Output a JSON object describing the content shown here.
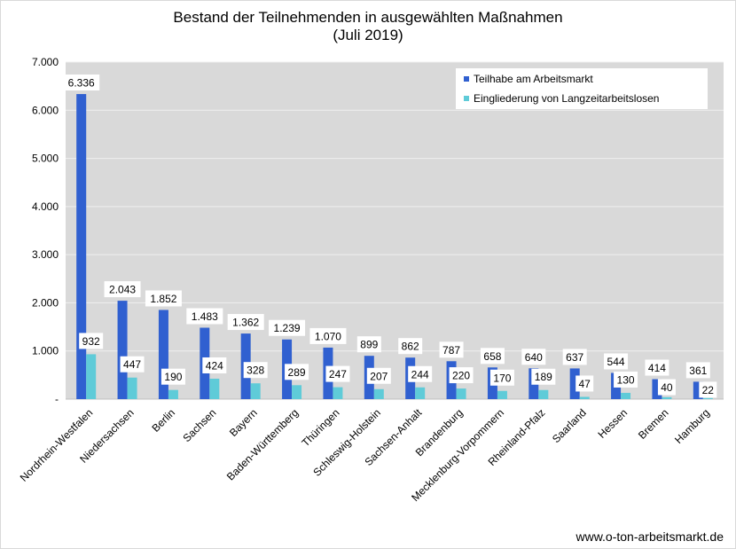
{
  "chart_data": {
    "type": "bar",
    "title": "Bestand der Teilnehmenden in ausgewählten Maßnahmen",
    "subtitle": "(Juli 2019)",
    "categories": [
      "Nordrhein-Westfalen",
      "Niedersachsen",
      "Berlin",
      "Sachsen",
      "Bayern",
      "Baden-Württemberg",
      "Thüringen",
      "Schleswig-Holstein",
      "Sachsen-Anhalt",
      "Brandenburg",
      "Mecklenburg-Vorpommern",
      "Rheinland-Pfalz",
      "Saarland",
      "Hessen",
      "Bremen",
      "Hamburg"
    ],
    "series": [
      {
        "name": "Teilhabe am Arbeitsmarkt",
        "color": "#3060d0",
        "values": [
          6336,
          2043,
          1852,
          1483,
          1362,
          1239,
          1070,
          899,
          862,
          787,
          658,
          640,
          637,
          544,
          414,
          361
        ],
        "labels": [
          "6.336",
          "2.043",
          "1.852",
          "1.483",
          "1.362",
          "1.239",
          "1.070",
          "899",
          "862",
          "787",
          "658",
          "640",
          "637",
          "544",
          "414",
          "361"
        ]
      },
      {
        "name": "Eingliederung von Langzeitarbeitslosen",
        "color": "#5fcbd8",
        "values": [
          932,
          447,
          190,
          424,
          328,
          289,
          247,
          207,
          244,
          220,
          170,
          189,
          47,
          130,
          40,
          22
        ],
        "labels": [
          "932",
          "447",
          "190",
          "424",
          "328",
          "289",
          "247",
          "207",
          "244",
          "220",
          "170",
          "189",
          "47",
          "130",
          "40",
          "22"
        ]
      }
    ],
    "ylim": [
      0,
      7000
    ],
    "yticks": [
      0,
      1000,
      2000,
      3000,
      4000,
      5000,
      6000,
      7000
    ],
    "ytick_labels": [
      "-",
      "1.000",
      "2.000",
      "3.000",
      "4.000",
      "5.000",
      "6.000",
      "7.000"
    ],
    "grid": true,
    "legend_position": "top-right",
    "plot_background": "#d9d9d9"
  },
  "footer": {
    "url": "www.o-ton-arbeitsmarkt.de"
  }
}
